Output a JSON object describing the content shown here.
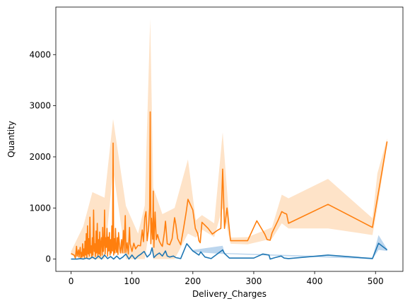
{
  "chart_data": {
    "type": "line",
    "xlabel": "Delivery_Charges",
    "ylabel": "Quantity",
    "xlim": [
      -25,
      545
    ],
    "ylim": [
      -240,
      4930
    ],
    "xticks": [
      0,
      100,
      200,
      300,
      400,
      500
    ],
    "yticks": [
      0,
      1000,
      2000,
      3000,
      4000
    ],
    "grid": false,
    "series": [
      {
        "color": "#ff7f0e",
        "band_color": "#fdd9b6",
        "points": [
          [
            0,
            110
          ],
          [
            5,
            80
          ],
          [
            7,
            20
          ],
          [
            9,
            250
          ],
          [
            10,
            60
          ],
          [
            12,
            180
          ],
          [
            13,
            40
          ],
          [
            15,
            230
          ],
          [
            16,
            20
          ],
          [
            17,
            130
          ],
          [
            18,
            40
          ],
          [
            19,
            300
          ],
          [
            20,
            60
          ],
          [
            21,
            200
          ],
          [
            22,
            30
          ],
          [
            23,
            350
          ],
          [
            24,
            80
          ],
          [
            25,
            500
          ],
          [
            26,
            30
          ],
          [
            27,
            650
          ],
          [
            28,
            100
          ],
          [
            29,
            400
          ],
          [
            30,
            60
          ],
          [
            31,
            820
          ],
          [
            32,
            120
          ],
          [
            33,
            260
          ],
          [
            34,
            40
          ],
          [
            35,
            420
          ],
          [
            36,
            80
          ],
          [
            37,
            960
          ],
          [
            38,
            150
          ],
          [
            39,
            300
          ],
          [
            40,
            50
          ],
          [
            41,
            550
          ],
          [
            42,
            120
          ],
          [
            43,
            700
          ],
          [
            44,
            60
          ],
          [
            45,
            380
          ],
          [
            46,
            100
          ],
          [
            47,
            530
          ],
          [
            48,
            60
          ],
          [
            49,
            320
          ],
          [
            50,
            420
          ],
          [
            51,
            80
          ],
          [
            52,
            620
          ],
          [
            53,
            150
          ],
          [
            54,
            280
          ],
          [
            55,
            960
          ],
          [
            56,
            100
          ],
          [
            57,
            420
          ],
          [
            58,
            230
          ],
          [
            59,
            600
          ],
          [
            60,
            60
          ],
          [
            61,
            430
          ],
          [
            62,
            160
          ],
          [
            63,
            520
          ],
          [
            64,
            80
          ],
          [
            65,
            380
          ],
          [
            66,
            120
          ],
          [
            67,
            650
          ],
          [
            68,
            160
          ],
          [
            69,
            2270
          ],
          [
            70,
            80
          ],
          [
            71,
            400
          ],
          [
            72,
            120
          ],
          [
            73,
            600
          ],
          [
            74,
            200
          ],
          [
            75,
            130
          ],
          [
            76,
            420
          ],
          [
            77,
            90
          ],
          [
            78,
            520
          ],
          [
            80,
            200
          ],
          [
            81,
            120
          ],
          [
            83,
            380
          ],
          [
            84,
            120
          ],
          [
            86,
            560
          ],
          [
            87,
            120
          ],
          [
            89,
            850
          ],
          [
            90,
            130
          ],
          [
            92,
            320
          ],
          [
            94,
            100
          ],
          [
            96,
            620
          ],
          [
            97,
            300
          ],
          [
            100,
            150
          ],
          [
            103,
            310
          ],
          [
            106,
            200
          ],
          [
            110,
            270
          ],
          [
            114,
            260
          ],
          [
            117,
            570
          ],
          [
            119,
            340
          ],
          [
            121,
            810
          ],
          [
            123,
            930
          ],
          [
            125,
            360
          ],
          [
            127,
            560
          ],
          [
            129,
            1000
          ],
          [
            130,
            2880
          ],
          [
            131,
            300
          ],
          [
            132,
            800
          ],
          [
            134,
            390
          ],
          [
            135,
            1330
          ],
          [
            136,
            230
          ],
          [
            138,
            920
          ],
          [
            140,
            380
          ],
          [
            142,
            480
          ],
          [
            145,
            350
          ],
          [
            148,
            280
          ],
          [
            150,
            250
          ],
          [
            153,
            500
          ],
          [
            155,
            740
          ],
          [
            158,
            300
          ],
          [
            162,
            280
          ],
          [
            166,
            400
          ],
          [
            170,
            810
          ],
          [
            172,
            680
          ],
          [
            175,
            400
          ],
          [
            180,
            280
          ],
          [
            185,
            620
          ],
          [
            189,
            910
          ],
          [
            192,
            1170
          ],
          [
            200,
            960
          ],
          [
            204,
            600
          ],
          [
            208,
            500
          ],
          [
            210,
            360
          ],
          [
            212,
            320
          ],
          [
            215,
            720
          ],
          [
            225,
            600
          ],
          [
            232,
            490
          ],
          [
            240,
            560
          ],
          [
            246,
            600
          ],
          [
            249,
            1760
          ],
          [
            252,
            600
          ],
          [
            256,
            1000
          ],
          [
            262,
            360
          ],
          [
            290,
            360
          ],
          [
            305,
            750
          ],
          [
            318,
            490
          ],
          [
            322,
            380
          ],
          [
            327,
            370
          ],
          [
            330,
            510
          ],
          [
            340,
            760
          ],
          [
            346,
            930
          ],
          [
            350,
            900
          ],
          [
            354,
            880
          ],
          [
            357,
            700
          ],
          [
            422,
            1070
          ],
          [
            495,
            620
          ],
          [
            519,
            2300
          ]
        ],
        "band": {
          "x": [
            0,
            20,
            35,
            55,
            69,
            90,
            110,
            121,
            130,
            135,
            150,
            170,
            192,
            205,
            215,
            235,
            249,
            262,
            290,
            330,
            346,
            357,
            422,
            495,
            503,
            519
          ],
          "upper": [
            150,
            640,
            1310,
            1200,
            2740,
            1040,
            500,
            1050,
            4700,
            1400,
            880,
            1000,
            1950,
            760,
            860,
            700,
            2480,
            420,
            430,
            620,
            1260,
            1190,
            1570,
            800,
            1670,
            2360
          ],
          "lower": [
            80,
            0,
            0,
            0,
            1750,
            0,
            0,
            0,
            700,
            0,
            0,
            0,
            500,
            420,
            580,
            430,
            1000,
            300,
            290,
            400,
            700,
            600,
            600,
            470,
            1000,
            2240
          ]
        }
      },
      {
        "color": "#1f77b4",
        "band_color": "#a6c8e8",
        "points": [
          [
            0,
            0
          ],
          [
            10,
            0
          ],
          [
            15,
            10
          ],
          [
            20,
            0
          ],
          [
            25,
            20
          ],
          [
            30,
            0
          ],
          [
            35,
            40
          ],
          [
            40,
            0
          ],
          [
            45,
            60
          ],
          [
            50,
            0
          ],
          [
            55,
            80
          ],
          [
            60,
            10
          ],
          [
            65,
            50
          ],
          [
            70,
            0
          ],
          [
            75,
            60
          ],
          [
            80,
            0
          ],
          [
            85,
            40
          ],
          [
            90,
            100
          ],
          [
            95,
            0
          ],
          [
            100,
            80
          ],
          [
            105,
            0
          ],
          [
            110,
            60
          ],
          [
            115,
            100
          ],
          [
            120,
            150
          ],
          [
            125,
            40
          ],
          [
            130,
            100
          ],
          [
            133,
            220
          ],
          [
            136,
            30
          ],
          [
            140,
            80
          ],
          [
            145,
            120
          ],
          [
            150,
            60
          ],
          [
            155,
            160
          ],
          [
            158,
            60
          ],
          [
            162,
            40
          ],
          [
            168,
            60
          ],
          [
            172,
            30
          ],
          [
            180,
            10
          ],
          [
            190,
            300
          ],
          [
            200,
            160
          ],
          [
            210,
            80
          ],
          [
            213,
            140
          ],
          [
            220,
            40
          ],
          [
            230,
            10
          ],
          [
            249,
            180
          ],
          [
            252,
            110
          ],
          [
            260,
            20
          ],
          [
            300,
            20
          ],
          [
            315,
            100
          ],
          [
            325,
            80
          ],
          [
            327,
            0
          ],
          [
            335,
            30
          ],
          [
            345,
            60
          ],
          [
            350,
            20
          ],
          [
            357,
            10
          ],
          [
            422,
            80
          ],
          [
            495,
            10
          ],
          [
            505,
            310
          ],
          [
            519,
            180
          ]
        ],
        "band": {
          "x": [
            190,
            200,
            249,
            252,
            495,
            505,
            519
          ],
          "upper": [
            320,
            180,
            260,
            120,
            30,
            470,
            200
          ],
          "lower": [
            280,
            140,
            100,
            100,
            0,
            180,
            160
          ]
        }
      }
    ]
  }
}
